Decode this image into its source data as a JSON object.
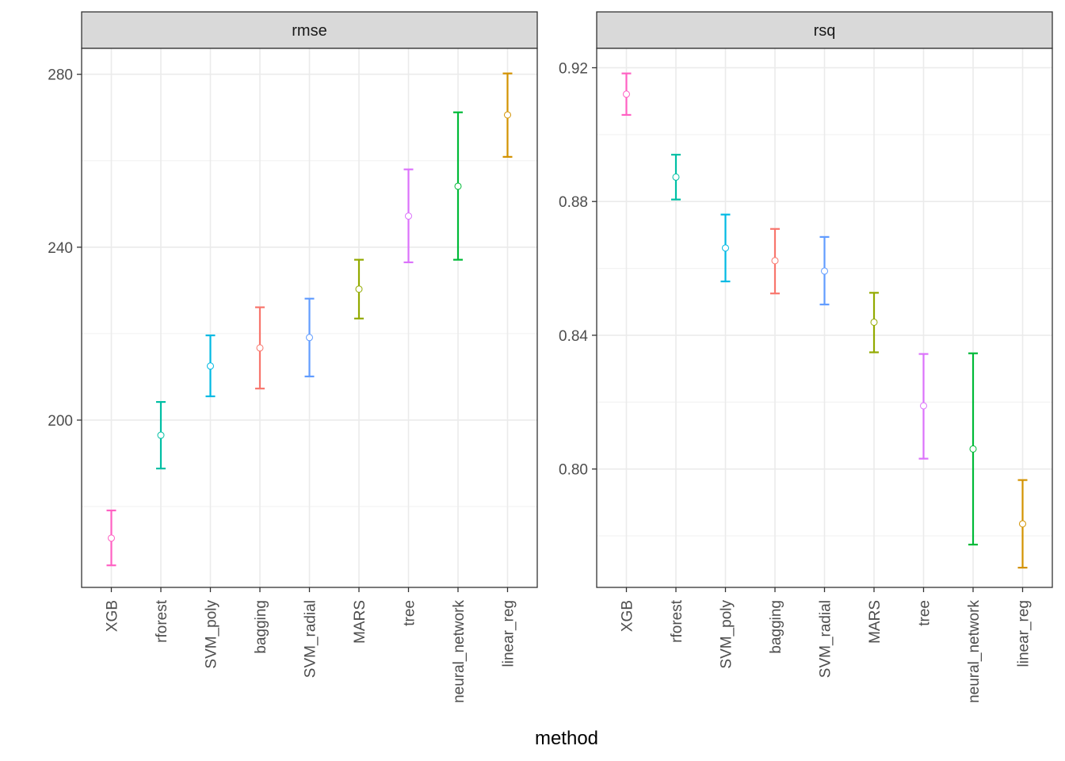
{
  "chart_data": [
    {
      "type": "errorbar",
      "panel": "rmse",
      "strip_label": "rmse",
      "categories": [
        "XGB",
        "rforest",
        "SVM_poly",
        "bagging",
        "SVM_radial",
        "MARS",
        "tree",
        "neural_network",
        "linear_reg"
      ],
      "mean": [
        172.7,
        196.5,
        212.5,
        216.7,
        219.1,
        230.3,
        247.2,
        254.1,
        270.6
      ],
      "lower": [
        166.4,
        188.8,
        205.5,
        207.3,
        210.1,
        223.5,
        236.5,
        237.1,
        260.9
      ],
      "upper": [
        179.1,
        204.2,
        219.6,
        226.1,
        228.1,
        237.1,
        258.0,
        271.2,
        280.2
      ],
      "yticks": [
        200,
        240,
        280
      ],
      "ytick_labels": [
        "200",
        "240",
        "280"
      ],
      "yminor": [
        180,
        220,
        260
      ],
      "ylim": [
        161.3,
        286.0
      ],
      "grid": true
    },
    {
      "type": "errorbar",
      "panel": "rsq",
      "strip_label": "rsq",
      "categories": [
        "XGB",
        "rforest",
        "SVM_poly",
        "bagging",
        "SVM_radial",
        "MARS",
        "tree",
        "neural_network",
        "linear_reg"
      ],
      "mean": [
        0.9121,
        0.8873,
        0.8661,
        0.8623,
        0.8592,
        0.8439,
        0.8189,
        0.806,
        0.7836
      ],
      "lower": [
        0.9059,
        0.8806,
        0.8561,
        0.8525,
        0.8492,
        0.8349,
        0.8031,
        0.7774,
        0.7705
      ],
      "upper": [
        0.9183,
        0.894,
        0.8761,
        0.8718,
        0.8694,
        0.8527,
        0.8344,
        0.8346,
        0.7967
      ],
      "yticks": [
        0.8,
        0.84,
        0.88,
        0.92
      ],
      "ytick_labels": [
        "0.80",
        "0.84",
        "0.88",
        "0.92"
      ],
      "yminor": [
        0.78,
        0.82,
        0.86,
        0.9
      ],
      "ylim": [
        0.7646,
        0.9258
      ],
      "grid": true
    }
  ],
  "colors": {
    "XGB": "#FF61C3",
    "rforest": "#00BFA4",
    "SVM_poly": "#00B9E3",
    "bagging": "#F8766D",
    "SVM_radial": "#619CFF",
    "MARS": "#93AA00",
    "tree": "#DB72FB",
    "neural_network": "#00BA38",
    "linear_reg": "#D39200"
  },
  "xlabel": "method",
  "ylabel": "",
  "legend": "none"
}
